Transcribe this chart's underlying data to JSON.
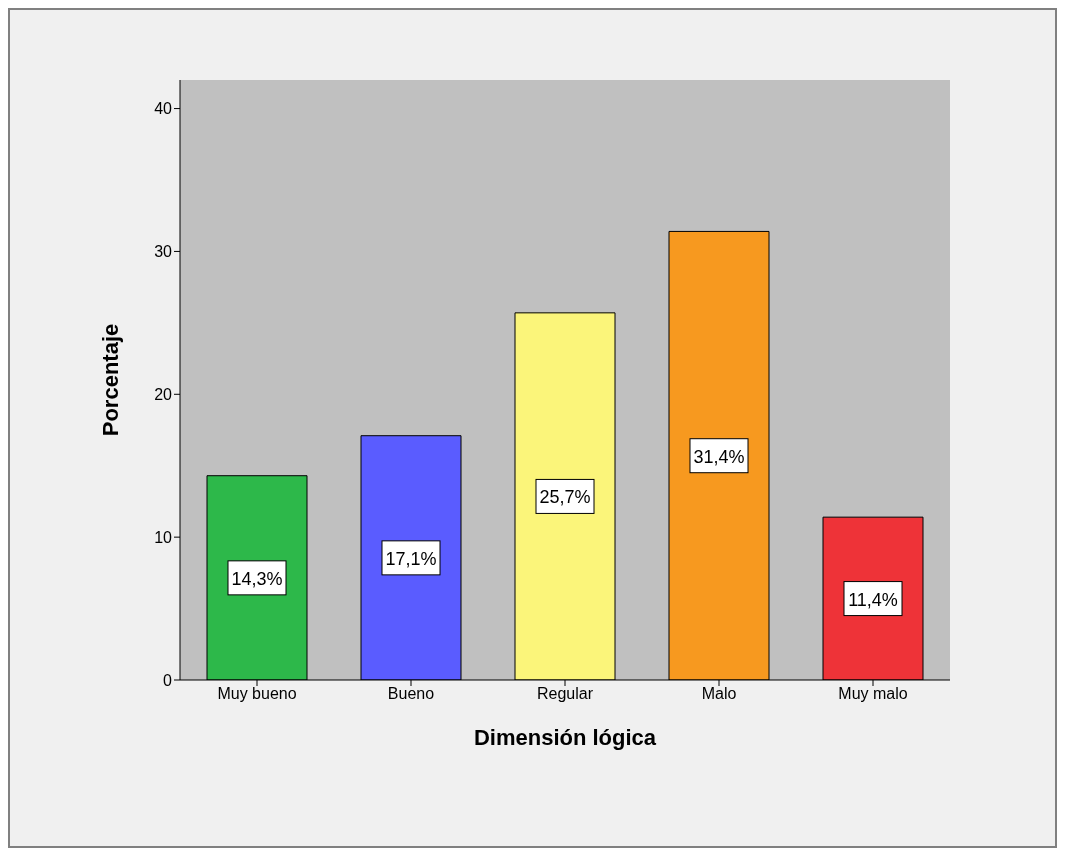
{
  "chart_data": {
    "type": "bar",
    "xlabel": "Dimensión lógica",
    "ylabel": "Porcentaje",
    "categories": [
      "Muy bueno",
      "Bueno",
      "Regular",
      "Malo",
      "Muy malo"
    ],
    "values": [
      14.3,
      17.1,
      25.7,
      31.4,
      11.4
    ],
    "colors": [
      "#2db84a",
      "#5a5cff",
      "#fbf57a",
      "#f7991f",
      "#ee3338"
    ],
    "value_labels": [
      "14,3%",
      "17,1%",
      "25,7%",
      "31,4%",
      "11,4%"
    ],
    "ylim": [
      0,
      42
    ],
    "yticks": [
      0,
      10,
      20,
      30,
      40
    ],
    "grid": false
  }
}
